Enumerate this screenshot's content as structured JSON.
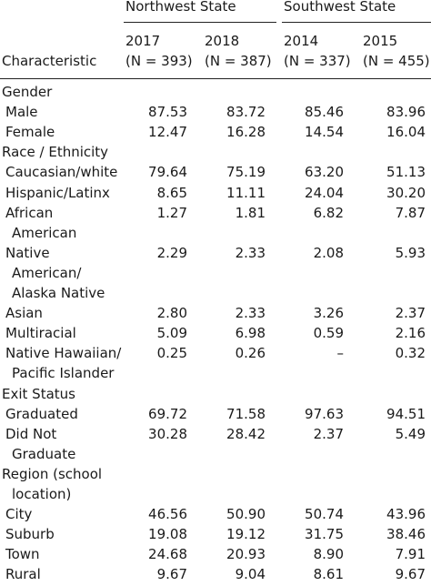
{
  "groups": [
    {
      "label": "Northwest State"
    },
    {
      "label": "Southwest State"
    }
  ],
  "columns": [
    {
      "year": "2017",
      "n": "(N = 393)"
    },
    {
      "year": "2018",
      "n": "(N = 387)"
    },
    {
      "year": "2014",
      "n": "(N = 337)"
    },
    {
      "year": "2015",
      "n": "(N = 455)"
    }
  ],
  "header": {
    "characteristic": "Characteristic"
  },
  "rows": [
    {
      "label": "Gender",
      "type": "section",
      "values": [
        "",
        "",
        "",
        ""
      ]
    },
    {
      "label": "Male",
      "type": "item",
      "values": [
        "87.53",
        "83.72",
        "85.46",
        "83.96"
      ]
    },
    {
      "label": "Female",
      "type": "item",
      "values": [
        "12.47",
        "16.28",
        "14.54",
        "16.04"
      ]
    },
    {
      "label": "Race / Ethnicity",
      "type": "section",
      "values": [
        "",
        "",
        "",
        ""
      ]
    },
    {
      "label": "Caucasian/white",
      "type": "item",
      "values": [
        "79.64",
        "75.19",
        "63.20",
        "51.13"
      ]
    },
    {
      "label": "Hispanic/Latinx",
      "type": "item",
      "values": [
        "8.65",
        "11.11",
        "24.04",
        "30.20"
      ]
    },
    {
      "label": "African",
      "type": "item",
      "values": [
        "1.27",
        "1.81",
        "6.82",
        "7.87"
      ]
    },
    {
      "label": "American",
      "type": "cont",
      "values": [
        "",
        "",
        "",
        ""
      ]
    },
    {
      "label": "Native",
      "type": "item",
      "values": [
        "2.29",
        "2.33",
        "2.08",
        "5.93"
      ]
    },
    {
      "label": "American/",
      "type": "cont",
      "values": [
        "",
        "",
        "",
        ""
      ]
    },
    {
      "label": "Alaska Native",
      "type": "cont",
      "values": [
        "",
        "",
        "",
        ""
      ]
    },
    {
      "label": "Asian",
      "type": "item",
      "values": [
        "2.80",
        "2.33",
        "3.26",
        "2.37"
      ]
    },
    {
      "label": "Multiracial",
      "type": "item",
      "values": [
        "5.09",
        "6.98",
        "0.59",
        "2.16"
      ]
    },
    {
      "label": "Native Hawaiian/",
      "type": "item",
      "values": [
        "0.25",
        "0.26",
        "–",
        "0.32"
      ]
    },
    {
      "label": "Pacific Islander",
      "type": "cont",
      "values": [
        "",
        "",
        "",
        ""
      ]
    },
    {
      "label": "Exit Status",
      "type": "section",
      "values": [
        "",
        "",
        "",
        ""
      ]
    },
    {
      "label": "Graduated",
      "type": "item",
      "values": [
        "69.72",
        "71.58",
        "97.63",
        "94.51"
      ]
    },
    {
      "label": "Did Not",
      "type": "item",
      "values": [
        "30.28",
        "28.42",
        "2.37",
        "5.49"
      ]
    },
    {
      "label": "Graduate",
      "type": "cont",
      "values": [
        "",
        "",
        "",
        ""
      ]
    },
    {
      "label": "Region (school",
      "type": "section",
      "values": [
        "",
        "",
        "",
        ""
      ]
    },
    {
      "label": "location)",
      "type": "cont",
      "values": [
        "",
        "",
        "",
        ""
      ]
    },
    {
      "label": "City",
      "type": "item",
      "values": [
        "46.56",
        "50.90",
        "50.74",
        "43.96"
      ]
    },
    {
      "label": "Suburb",
      "type": "item",
      "values": [
        "19.08",
        "19.12",
        "31.75",
        "38.46"
      ]
    },
    {
      "label": "Town",
      "type": "item",
      "values": [
        "24.68",
        "20.93",
        "8.90",
        "7.91"
      ]
    },
    {
      "label": "Rural",
      "type": "item",
      "values": [
        "9.67",
        "9.04",
        "8.61",
        "9.67"
      ]
    }
  ]
}
